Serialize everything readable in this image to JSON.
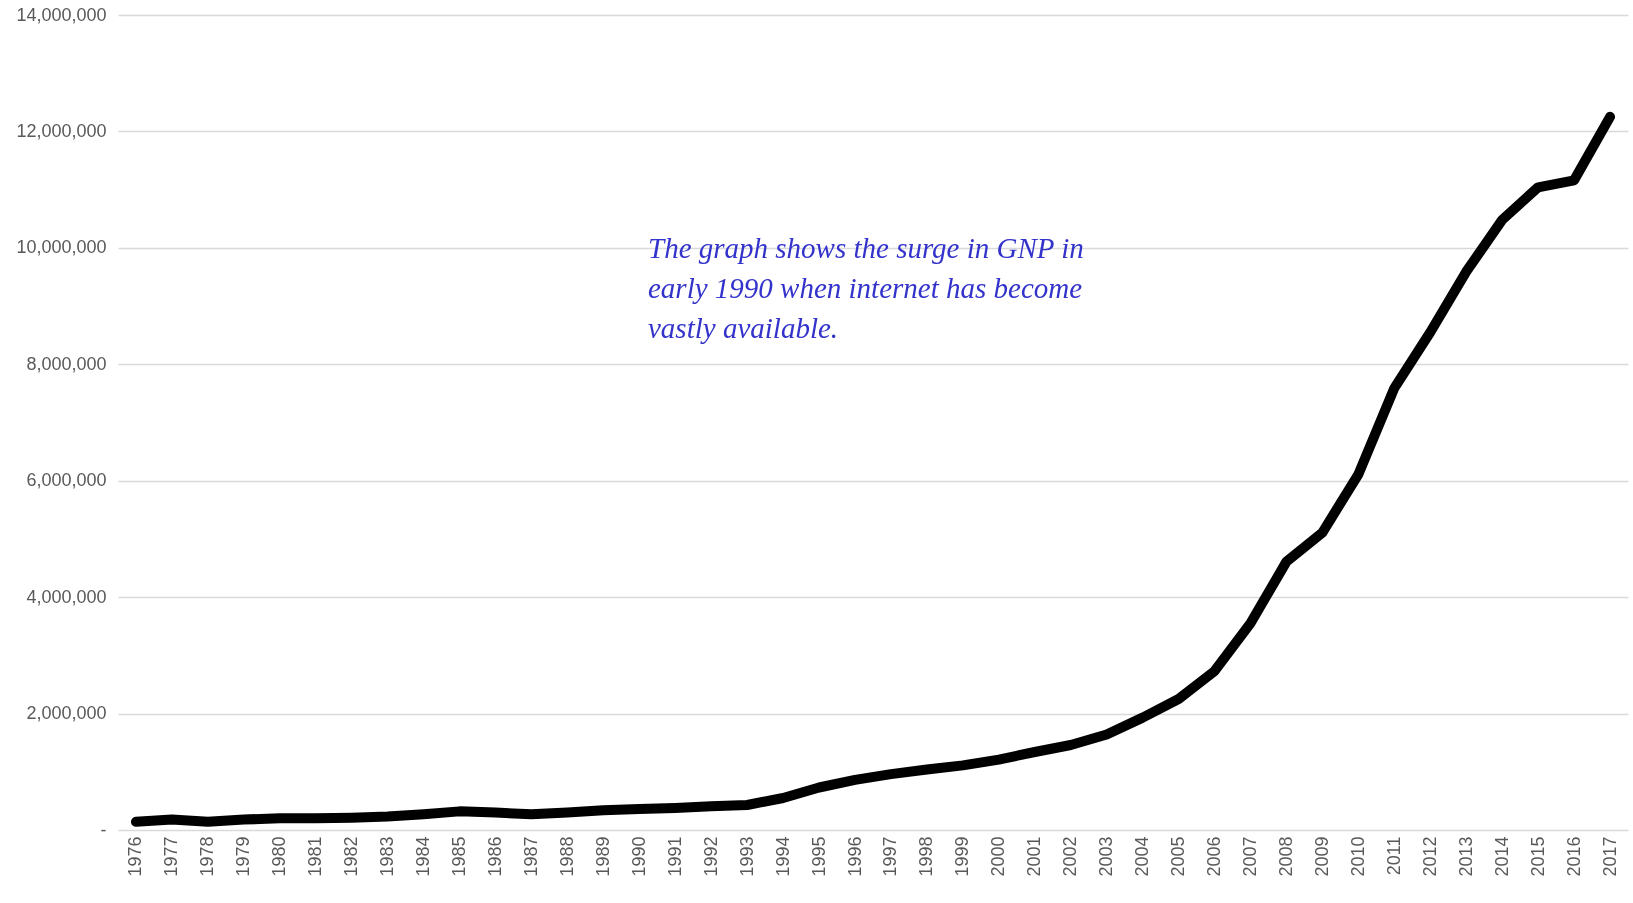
{
  "chart_data": {
    "type": "line",
    "categories": [
      "1976",
      "1977",
      "1978",
      "1979",
      "1980",
      "1981",
      "1982",
      "1983",
      "1984",
      "1985",
      "1986",
      "1987",
      "1988",
      "1989",
      "1990",
      "1991",
      "1992",
      "1993",
      "1994",
      "1995",
      "1996",
      "1997",
      "1998",
      "1999",
      "2000",
      "2001",
      "2002",
      "2003",
      "2004",
      "2005",
      "2006",
      "2007",
      "2008",
      "2009",
      "2010",
      "2011",
      "2012",
      "2013",
      "2014",
      "2015",
      "2016",
      "2017"
    ],
    "series": [
      {
        "color": "#000000",
        "values": [
          140000,
          180000,
          140000,
          180000,
          200000,
          200000,
          210000,
          230000,
          270000,
          320000,
          300000,
          270000,
          300000,
          340000,
          360000,
          380000,
          410000,
          430000,
          550000,
          730000,
          860000,
          960000,
          1040000,
          1110000,
          1210000,
          1340000,
          1460000,
          1640000,
          1930000,
          2250000,
          2730000,
          3550000,
          4610000,
          5110000,
          6110000,
          7590000,
          8550000,
          9590000,
          10480000,
          11040000,
          11160000,
          12250000
        ]
      }
    ],
    "ylim": [
      0,
      14000000
    ],
    "yticks": [
      {
        "value": 0,
        "label": "-"
      },
      {
        "value": 2000000,
        "label": "2,000,000"
      },
      {
        "value": 4000000,
        "label": "4,000,000"
      },
      {
        "value": 6000000,
        "label": "6,000,000"
      },
      {
        "value": 8000000,
        "label": "8,000,000"
      },
      {
        "value": 10000000,
        "label": "10,000,000"
      },
      {
        "value": 12000000,
        "label": "12,000,000"
      },
      {
        "value": 14000000,
        "label": "14,000,000"
      }
    ],
    "grid": "y",
    "marker": "none",
    "line_style": "solid",
    "annotations": [
      "The graph shows the surge in GNP in\nearly 1990 when internet has become\nvastly available."
    ]
  }
}
